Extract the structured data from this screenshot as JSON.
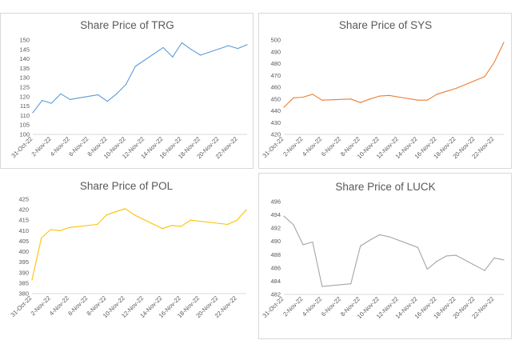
{
  "x_dates": [
    "31-Oct-22",
    "1-Nov-22",
    "2-Nov-22",
    "3-Nov-22",
    "4-Nov-22",
    "5-Nov-22",
    "6-Nov-22",
    "7-Nov-22",
    "8-Nov-22",
    "9-Nov-22",
    "10-Nov-22",
    "11-Nov-22",
    "12-Nov-22",
    "13-Nov-22",
    "14-Nov-22",
    "15-Nov-22",
    "16-Nov-22",
    "17-Nov-22",
    "18-Nov-22",
    "19-Nov-22",
    "20-Nov-22",
    "21-Nov-22",
    "22-Nov-22",
    "23-Nov-22"
  ],
  "x_tick_labels": [
    "31-Oct-22",
    "2-Nov-22",
    "4-Nov-22",
    "6-Nov-22",
    "8-Nov-22",
    "10-Nov-22",
    "12-Nov-22",
    "14-Nov-22",
    "16-Nov-22",
    "18-Nov-22",
    "20-Nov-22",
    "22-Nov-22"
  ],
  "chart_data": [
    {
      "type": "line",
      "title": "Share Price of TRG",
      "color": "#5b9bd5",
      "ylim": [
        100,
        150
      ],
      "yticks": [
        100,
        105,
        110,
        115,
        120,
        125,
        130,
        135,
        140,
        145,
        150
      ],
      "grid": false,
      "x": [
        "31-Oct-22",
        "1-Nov-22",
        "2-Nov-22",
        "3-Nov-22",
        "4-Nov-22",
        "7-Nov-22",
        "8-Nov-22",
        "9-Nov-22",
        "10-Nov-22",
        "11-Nov-22",
        "14-Nov-22",
        "15-Nov-22",
        "16-Nov-22",
        "17-Nov-22",
        "18-Nov-22",
        "21-Nov-22",
        "22-Nov-22",
        "23-Nov-22"
      ],
      "y": [
        111.5,
        118,
        116.5,
        121.5,
        118.5,
        121,
        117.5,
        121.5,
        126.5,
        136,
        146,
        141,
        148.5,
        145,
        142,
        147,
        145.5,
        147.5
      ]
    },
    {
      "type": "line",
      "title": "Share Price of SYS",
      "color": "#ed7d31",
      "ylim": [
        420,
        500
      ],
      "yticks": [
        420,
        430,
        440,
        450,
        460,
        470,
        480,
        490,
        500
      ],
      "grid": false,
      "x": [
        "31-Oct-22",
        "1-Nov-22",
        "2-Nov-22",
        "3-Nov-22",
        "4-Nov-22",
        "7-Nov-22",
        "8-Nov-22",
        "9-Nov-22",
        "10-Nov-22",
        "11-Nov-22",
        "14-Nov-22",
        "15-Nov-22",
        "16-Nov-22",
        "17-Nov-22",
        "18-Nov-22",
        "21-Nov-22",
        "22-Nov-22",
        "23-Nov-22"
      ],
      "y": [
        443,
        451,
        451.5,
        454,
        449,
        450,
        447,
        450,
        452.5,
        453,
        449,
        449,
        454,
        456.5,
        459,
        469,
        481,
        498
      ]
    },
    {
      "type": "line",
      "title": "Share Price of POL",
      "color": "#ffc000",
      "ylim": [
        380,
        425
      ],
      "yticks": [
        380,
        385,
        390,
        395,
        400,
        405,
        410,
        415,
        420,
        425
      ],
      "grid": false,
      "x": [
        "31-Oct-22",
        "1-Nov-22",
        "2-Nov-22",
        "3-Nov-22",
        "4-Nov-22",
        "7-Nov-22",
        "8-Nov-22",
        "9-Nov-22",
        "10-Nov-22",
        "11-Nov-22",
        "14-Nov-22",
        "15-Nov-22",
        "16-Nov-22",
        "17-Nov-22",
        "18-Nov-22",
        "21-Nov-22",
        "22-Nov-22",
        "23-Nov-22"
      ],
      "y": [
        386.5,
        406.5,
        410.5,
        410,
        411.5,
        413,
        417.5,
        419,
        420.5,
        417.5,
        411,
        412.5,
        412,
        415,
        414.5,
        413,
        415,
        420
      ]
    },
    {
      "type": "line",
      "title": "Share Price of LUCK",
      "color": "#a5a5a5",
      "ylim": [
        482,
        496
      ],
      "yticks": [
        482,
        484,
        486,
        488,
        490,
        492,
        494,
        496
      ],
      "grid": false,
      "x": [
        "31-Oct-22",
        "1-Nov-22",
        "2-Nov-22",
        "3-Nov-22",
        "4-Nov-22",
        "7-Nov-22",
        "8-Nov-22",
        "9-Nov-22",
        "10-Nov-22",
        "11-Nov-22",
        "14-Nov-22",
        "15-Nov-22",
        "16-Nov-22",
        "17-Nov-22",
        "18-Nov-22",
        "21-Nov-22",
        "22-Nov-22",
        "23-Nov-22"
      ],
      "y": [
        493.8,
        492.5,
        489.5,
        489.9,
        483.2,
        483.6,
        489.3,
        490.2,
        491,
        490.7,
        489.1,
        485.8,
        487,
        487.8,
        487.9,
        485.6,
        487.5,
        487.2
      ]
    }
  ]
}
